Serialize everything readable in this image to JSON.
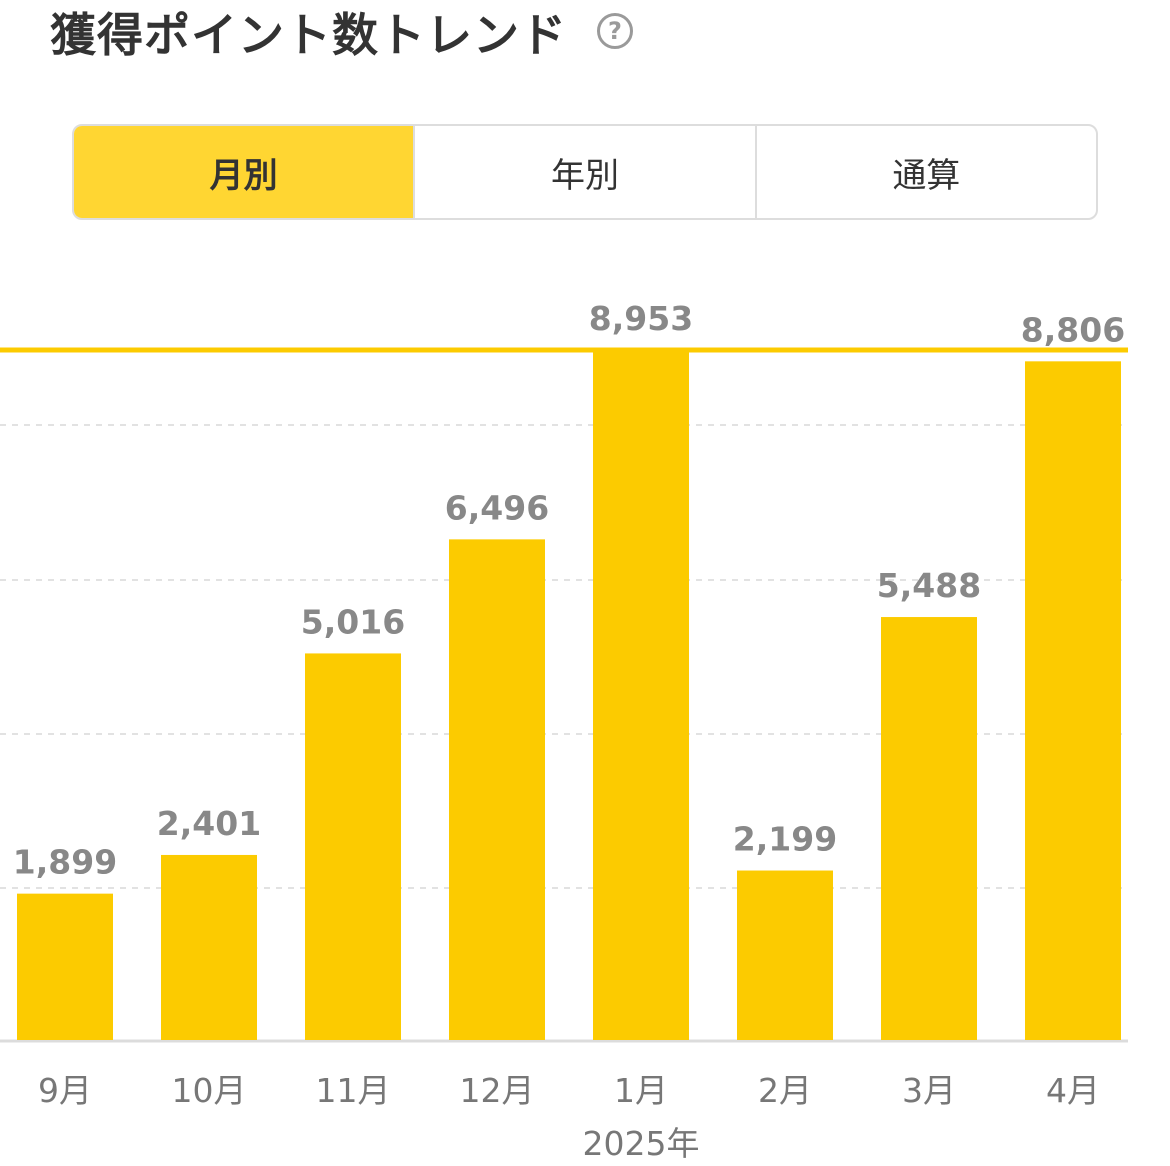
{
  "header": {
    "title": "獲得ポイント数トレンド",
    "help_icon": "question-circle-icon",
    "help_glyph": "?"
  },
  "tabs": [
    {
      "label": "月別",
      "active": true
    },
    {
      "label": "年別",
      "active": false
    },
    {
      "label": "通算",
      "active": false
    }
  ],
  "colors": {
    "bar": "#fccb00",
    "tab_active": "#ffd632",
    "value_label": "#888888",
    "axis_label": "#777777"
  },
  "chart_data": {
    "type": "bar",
    "categories": [
      "9月",
      "10月",
      "11月",
      "12月",
      "1月",
      "2月",
      "3月",
      "4月"
    ],
    "values": [
      1899,
      2401,
      5016,
      6496,
      8953,
      2199,
      5488,
      8806
    ],
    "value_labels": [
      "1,899",
      "2,401",
      "5,016",
      "6,496",
      "8,953",
      "2,199",
      "5,488",
      "8,806"
    ],
    "year_label": "2025年",
    "ylim": [
      0,
      8953
    ],
    "max_line": 8953,
    "grid": "dashed horizontal"
  }
}
